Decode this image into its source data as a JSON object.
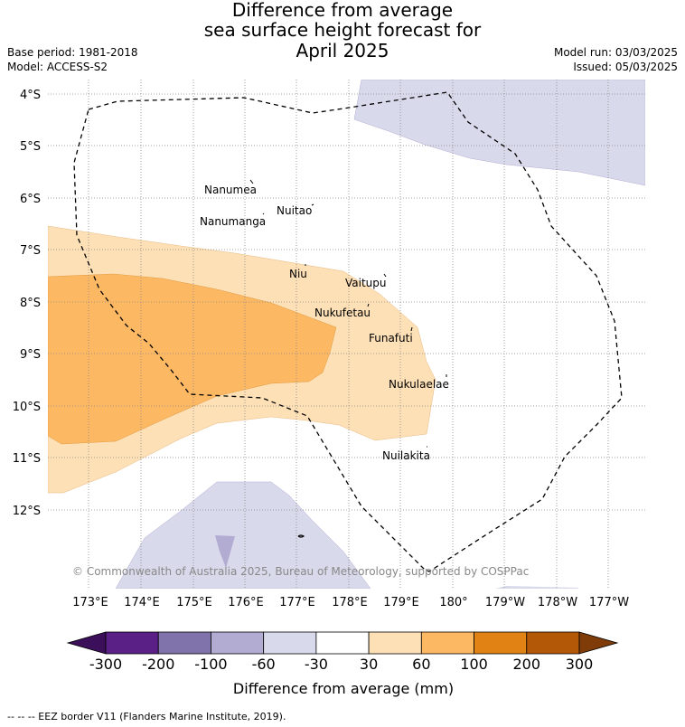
{
  "title": {
    "line1": "Difference from average",
    "line2": "sea surface height forecast for",
    "line3": "April 2025"
  },
  "meta": {
    "base_period": "Base period: 1981-2018",
    "model": "Model: ACCESS-S2",
    "model_run": "Model run: 03/03/2025",
    "issued": "Issued: 05/03/2025"
  },
  "map": {
    "lat_ticks": [
      "4°S",
      "5°S",
      "6°S",
      "7°S",
      "8°S",
      "9°S",
      "10°S",
      "11°S",
      "12°S"
    ],
    "lon_ticks": [
      "173°E",
      "174°E",
      "175°E",
      "176°E",
      "177°E",
      "178°E",
      "179°E",
      "180°",
      "179°W",
      "178°W",
      "177°W"
    ],
    "islands": [
      "Nanumea",
      "Nuitao",
      "Nanumanga",
      "Niu",
      "Vaitupu",
      "Nukufetau",
      "Funafuti",
      "Nukulaelae",
      "Nuilakita"
    ],
    "copyright": "© Commonwealth of Australia 2025, Bureau of Meteorology, supported by COSPPac"
  },
  "colorbar": {
    "ticks": [
      "-300",
      "-200",
      "-100",
      "-60",
      "-30",
      "30",
      "60",
      "100",
      "200",
      "300"
    ],
    "colors": [
      "#3b0f5a",
      "#5a2086",
      "#8073ac",
      "#b2abd2",
      "#d8daeb",
      "#ffffff",
      "#fee0b6",
      "#fdb863",
      "#e08214",
      "#b35806",
      "#7f3b08"
    ],
    "label": "Difference from average (mm)"
  },
  "footer": "--  --  -- EEZ border V11 (Flanders Marine Institute, 2019)."
}
